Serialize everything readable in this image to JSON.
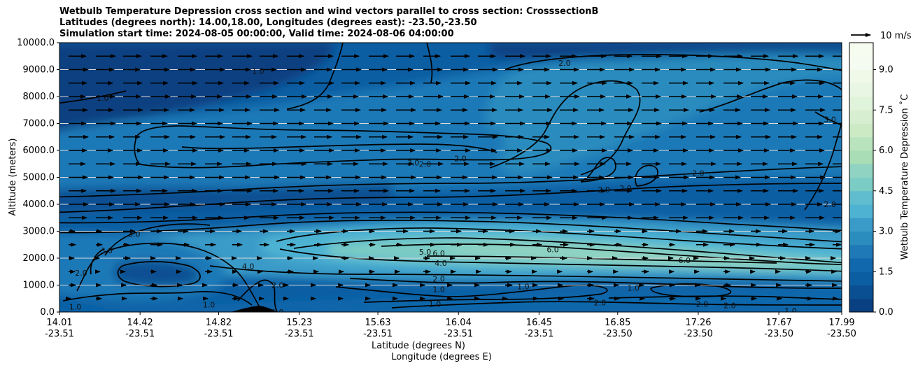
{
  "chart_data": {
    "type": "heatmap",
    "title_lines": [
      "Wetbulb Temperature Depression cross section and wind vectors parallel to cross section: CrosssectionB",
      "Latitudes (degrees north): 14.00,18.00, Longitudes (degrees east): -23.50,-23.50",
      "Simulation start time: 2024-08-05 00:00:00, Valid time: 2024-08-06 04:00:00"
    ],
    "xlabel_lines": [
      "Latitude (degrees N)",
      "Longitude (degrees E)"
    ],
    "ylabel": "Altitude (meters)",
    "x_ticks": [
      {
        "lat": "14.01",
        "lon": "-23.51",
        "v": 14.01
      },
      {
        "lat": "14.42",
        "lon": "-23.51",
        "v": 14.42
      },
      {
        "lat": "14.82",
        "lon": "-23.51",
        "v": 14.82
      },
      {
        "lat": "15.23",
        "lon": "-23.51",
        "v": 15.23
      },
      {
        "lat": "15.63",
        "lon": "-23.51",
        "v": 15.63
      },
      {
        "lat": "16.04",
        "lon": "-23.51",
        "v": 16.04
      },
      {
        "lat": "16.45",
        "lon": "-23.51",
        "v": 16.45
      },
      {
        "lat": "16.85",
        "lon": "-23.50",
        "v": 16.85
      },
      {
        "lat": "17.26",
        "lon": "-23.50",
        "v": 17.26
      },
      {
        "lat": "17.67",
        "lon": "-23.50",
        "v": 17.67
      },
      {
        "lat": "17.99",
        "lon": "-23.50",
        "v": 17.99
      }
    ],
    "xlim": [
      14.01,
      17.99
    ],
    "y_ticks": [
      "0.0",
      "1000.0",
      "2000.0",
      "3000.0",
      "4000.0",
      "5000.0",
      "6000.0",
      "7000.0",
      "8000.0",
      "9000.0",
      "10000.0"
    ],
    "ylim": [
      0,
      10000
    ],
    "grid": "horizontal",
    "colorbar": {
      "label": "Wetbulb Temperature Depression ˚C",
      "ticks": [
        "0.0",
        "1.5",
        "3.0",
        "4.5",
        "6.0",
        "7.5",
        "9.0"
      ],
      "range": [
        0,
        10
      ],
      "levels": 20,
      "colors": [
        "#084081",
        "#0a4f92",
        "#0c5ea3",
        "#1168ac",
        "#1f79b7",
        "#2b8cbe",
        "#3a9bc8",
        "#4eb3d3",
        "#5fbdcf",
        "#7bccc4",
        "#90d3c2",
        "#a8ddb5",
        "#b8e3bc",
        "#ccebc5",
        "#d7efd0",
        "#e0f3db",
        "#e9f6e3",
        "#f0f9e8",
        "#f5fbf0",
        "#f7fcf0"
      ]
    },
    "wind_key": "10 m/s",
    "contour_labels": [
      {
        "text": "1.0",
        "lat": 15.12,
        "alt": 0
      },
      {
        "text": "1.0",
        "lat": 14.09,
        "alt": 200
      },
      {
        "text": "1.0",
        "lat": 14.77,
        "alt": 270
      },
      {
        "text": "2.0",
        "lat": 14.12,
        "alt": 1450
      },
      {
        "text": "3.0",
        "lat": 14.25,
        "alt": 2280
      },
      {
        "text": "3.0",
        "lat": 14.39,
        "alt": 2900
      },
      {
        "text": "4.0",
        "lat": 14.97,
        "alt": 1700
      },
      {
        "text": "2.0",
        "lat": 15.12,
        "alt": 1000
      },
      {
        "text": "5.0",
        "lat": 15.87,
        "alt": 2240
      },
      {
        "text": "6.0",
        "lat": 15.94,
        "alt": 2180
      },
      {
        "text": "4.0",
        "lat": 15.95,
        "alt": 1820
      },
      {
        "text": "2.0",
        "lat": 15.94,
        "alt": 1230
      },
      {
        "text": "1.0",
        "lat": 15.94,
        "alt": 850
      },
      {
        "text": "1.0",
        "lat": 15.92,
        "alt": 300
      },
      {
        "text": "1.0",
        "lat": 16.37,
        "alt": 950
      },
      {
        "text": "6.0",
        "lat": 16.52,
        "alt": 2330
      },
      {
        "text": "6.0",
        "lat": 17.19,
        "alt": 1920
      },
      {
        "text": "1.0",
        "lat": 16.93,
        "alt": 900
      },
      {
        "text": "2.0",
        "lat": 16.76,
        "alt": 350
      },
      {
        "text": "2.0",
        "lat": 17.28,
        "alt": 300
      },
      {
        "text": "2.0",
        "lat": 17.42,
        "alt": 250
      },
      {
        "text": "1.0",
        "lat": 17.73,
        "alt": 50
      },
      {
        "text": "3.0",
        "lat": 15.81,
        "alt": 5550
      },
      {
        "text": "2.0",
        "lat": 15.87,
        "alt": 5500
      },
      {
        "text": "2.0",
        "lat": 16.05,
        "alt": 5700
      },
      {
        "text": "2.0",
        "lat": 16.78,
        "alt": 4550
      },
      {
        "text": "2.0",
        "lat": 16.89,
        "alt": 4600
      },
      {
        "text": "2.0",
        "lat": 17.26,
        "alt": 5150
      },
      {
        "text": "2.0",
        "lat": 17.93,
        "alt": 4000
      },
      {
        "text": "3.0",
        "lat": 17.93,
        "alt": 7150
      },
      {
        "text": "2.0",
        "lat": 16.58,
        "alt": 9250
      },
      {
        "text": "1.0",
        "lat": 15.02,
        "alt": 8950
      },
      {
        "text": "1.0",
        "lat": 14.23,
        "alt": 7950
      }
    ]
  }
}
